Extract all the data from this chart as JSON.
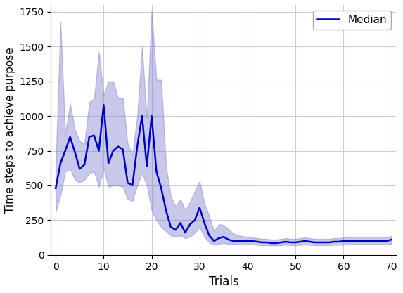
{
  "trials": [
    0,
    1,
    2,
    3,
    4,
    5,
    6,
    7,
    8,
    9,
    10,
    11,
    12,
    13,
    14,
    15,
    16,
    17,
    18,
    19,
    20,
    21,
    22,
    23,
    24,
    25,
    26,
    27,
    28,
    29,
    30,
    31,
    32,
    33,
    34,
    35,
    36,
    37,
    38,
    39,
    40,
    41,
    42,
    43,
    44,
    45,
    46,
    47,
    48,
    49,
    50,
    51,
    52,
    53,
    54,
    55,
    56,
    57,
    58,
    59,
    60,
    61,
    62,
    63,
    64,
    65,
    66,
    67,
    68,
    69,
    70
  ],
  "median": [
    480,
    660,
    750,
    850,
    740,
    620,
    650,
    850,
    860,
    750,
    1080,
    660,
    750,
    780,
    760,
    520,
    500,
    780,
    1000,
    640,
    1000,
    600,
    480,
    320,
    200,
    180,
    230,
    160,
    220,
    250,
    340,
    230,
    140,
    100,
    120,
    130,
    110,
    100,
    100,
    100,
    100,
    100,
    95,
    90,
    90,
    85,
    85,
    90,
    95,
    90,
    90,
    95,
    100,
    95,
    90,
    90,
    90,
    90,
    95,
    95,
    100,
    100,
    100,
    100,
    100,
    100,
    100,
    100,
    100,
    100,
    110
  ],
  "q25": [
    310,
    430,
    600,
    620,
    540,
    520,
    540,
    590,
    600,
    490,
    620,
    490,
    500,
    500,
    490,
    400,
    390,
    500,
    590,
    500,
    320,
    250,
    200,
    170,
    140,
    130,
    140,
    120,
    130,
    160,
    200,
    130,
    90,
    75,
    80,
    85,
    80,
    80,
    75,
    75,
    75,
    75,
    72,
    70,
    70,
    68,
    68,
    70,
    72,
    70,
    70,
    72,
    74,
    72,
    70,
    70,
    70,
    70,
    72,
    72,
    74,
    74,
    76,
    76,
    76,
    76,
    76,
    76,
    76,
    76,
    80
  ],
  "q75": [
    630,
    1680,
    870,
    1090,
    900,
    820,
    800,
    1100,
    1120,
    1460,
    1150,
    1250,
    1250,
    1130,
    1130,
    800,
    720,
    1000,
    1500,
    980,
    1760,
    1260,
    1260,
    640,
    420,
    350,
    400,
    320,
    380,
    460,
    530,
    370,
    280,
    170,
    220,
    215,
    185,
    155,
    140,
    135,
    130,
    125,
    120,
    115,
    115,
    110,
    110,
    115,
    120,
    115,
    115,
    120,
    125,
    120,
    115,
    115,
    115,
    115,
    120,
    120,
    125,
    130,
    130,
    130,
    130,
    130,
    130,
    130,
    130,
    130,
    135
  ],
  "line_color": "#0000cc",
  "fill_color": "#7777cc",
  "fill_alpha": 0.4,
  "xlabel": "Trials",
  "ylabel": "Time steps to achieve purpose",
  "ylim": [
    0,
    1800
  ],
  "xlim": [
    -1,
    71
  ],
  "yticks": [
    0,
    250,
    500,
    750,
    1000,
    1250,
    1500,
    1750
  ],
  "xticks": [
    0,
    10,
    20,
    30,
    40,
    50,
    60,
    70
  ],
  "legend_label": "Median",
  "legend_loc": "upper right",
  "figwidth": 5.73,
  "figheight": 4.17,
  "dpi": 100
}
